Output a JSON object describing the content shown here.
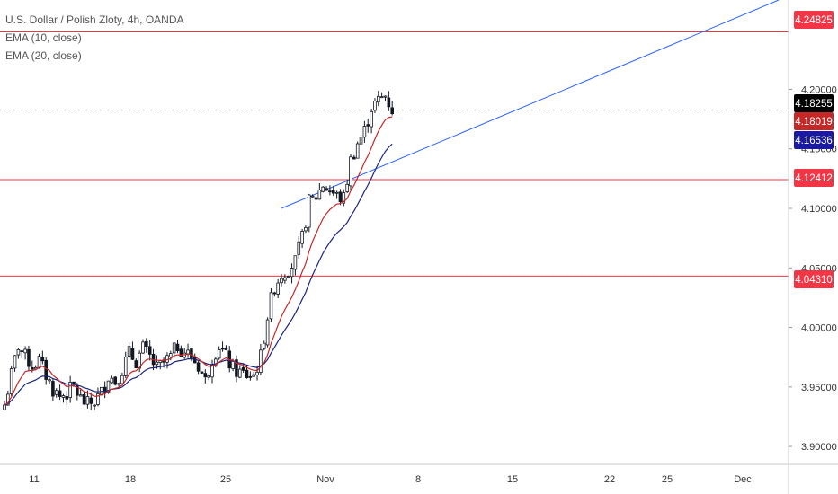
{
  "legend": {
    "title": "U.S. Dollar / Polish Zloty, 4h, OANDA",
    "ema10": "EMA (10, close)",
    "ema20": "EMA (20, close)"
  },
  "colors": {
    "hline": "#f23645",
    "trendline": "#2962ff",
    "ema10": "#c62828",
    "ema20": "#1a237e",
    "candle": "#131722",
    "last_tag": "#000000",
    "ema10_tag": "#c62828",
    "ema20_tag": "#1a1aa0"
  },
  "chart_data": {
    "type": "candlestick",
    "symbol": "U.S. Dollar / Polish Zloty, 4h, OANDA",
    "x_ticks": [
      "11",
      "18",
      "25",
      "Nov",
      "8",
      "15",
      "22",
      "25",
      "Dec"
    ],
    "y_ticks": [
      "3.90000",
      "3.95000",
      "4.00000",
      "4.05000",
      "4.10000",
      "4.15000",
      "4.20000"
    ],
    "ylim": [
      3.885,
      4.275
    ],
    "horizontal_levels": [
      {
        "value": 4.24825,
        "label": "4.24825"
      },
      {
        "value": 4.12412,
        "label": "4.12412"
      },
      {
        "value": 4.0431,
        "label": "4.04310"
      }
    ],
    "last_price": {
      "value": 4.18255,
      "label": "4.18255"
    },
    "ema10_last": {
      "value": 4.18019,
      "label": "4.18019"
    },
    "ema20_last": {
      "value": 4.16536,
      "label": "4.16536"
    },
    "trendline": {
      "from_value": 4.1,
      "to_value": 4.275
    },
    "close_path": [
      [
        0,
        3.935
      ],
      [
        2,
        3.96
      ],
      [
        4,
        3.985
      ],
      [
        6,
        3.975
      ],
      [
        8,
        3.968
      ],
      [
        10,
        3.972
      ],
      [
        12,
        3.96
      ],
      [
        14,
        3.948
      ],
      [
        16,
        3.942
      ],
      [
        18,
        3.945
      ],
      [
        20,
        3.95
      ],
      [
        22,
        3.94
      ],
      [
        24,
        3.935
      ],
      [
        26,
        3.938
      ],
      [
        28,
        3.945
      ],
      [
        30,
        3.96
      ],
      [
        32,
        3.955
      ],
      [
        34,
        3.965
      ],
      [
        36,
        3.978
      ],
      [
        38,
        3.972
      ],
      [
        40,
        3.982
      ],
      [
        42,
        3.975
      ],
      [
        44,
        3.965
      ],
      [
        46,
        3.97
      ],
      [
        48,
        3.975
      ],
      [
        50,
        3.985
      ],
      [
        52,
        3.98
      ],
      [
        54,
        3.975
      ],
      [
        56,
        3.968
      ],
      [
        58,
        3.955
      ],
      [
        60,
        3.975
      ],
      [
        62,
        3.985
      ],
      [
        64,
        3.975
      ],
      [
        66,
        3.965
      ],
      [
        68,
        3.962
      ],
      [
        70,
        3.96
      ],
      [
        72,
        3.96
      ],
      [
        74,
        3.975
      ],
      [
        76,
        4.01
      ],
      [
        78,
        4.035
      ],
      [
        80,
        4.045
      ],
      [
        82,
        4.05
      ],
      [
        84,
        4.055
      ],
      [
        86,
        4.075
      ],
      [
        88,
        4.105
      ],
      [
        90,
        4.11
      ],
      [
        92,
        4.12
      ],
      [
        94,
        4.115
      ],
      [
        96,
        4.11
      ],
      [
        98,
        4.108
      ],
      [
        100,
        4.14
      ],
      [
        102,
        4.155
      ],
      [
        104,
        4.165
      ],
      [
        106,
        4.185
      ],
      [
        108,
        4.19
      ],
      [
        110,
        4.195
      ],
      [
        112,
        4.183
      ]
    ]
  }
}
